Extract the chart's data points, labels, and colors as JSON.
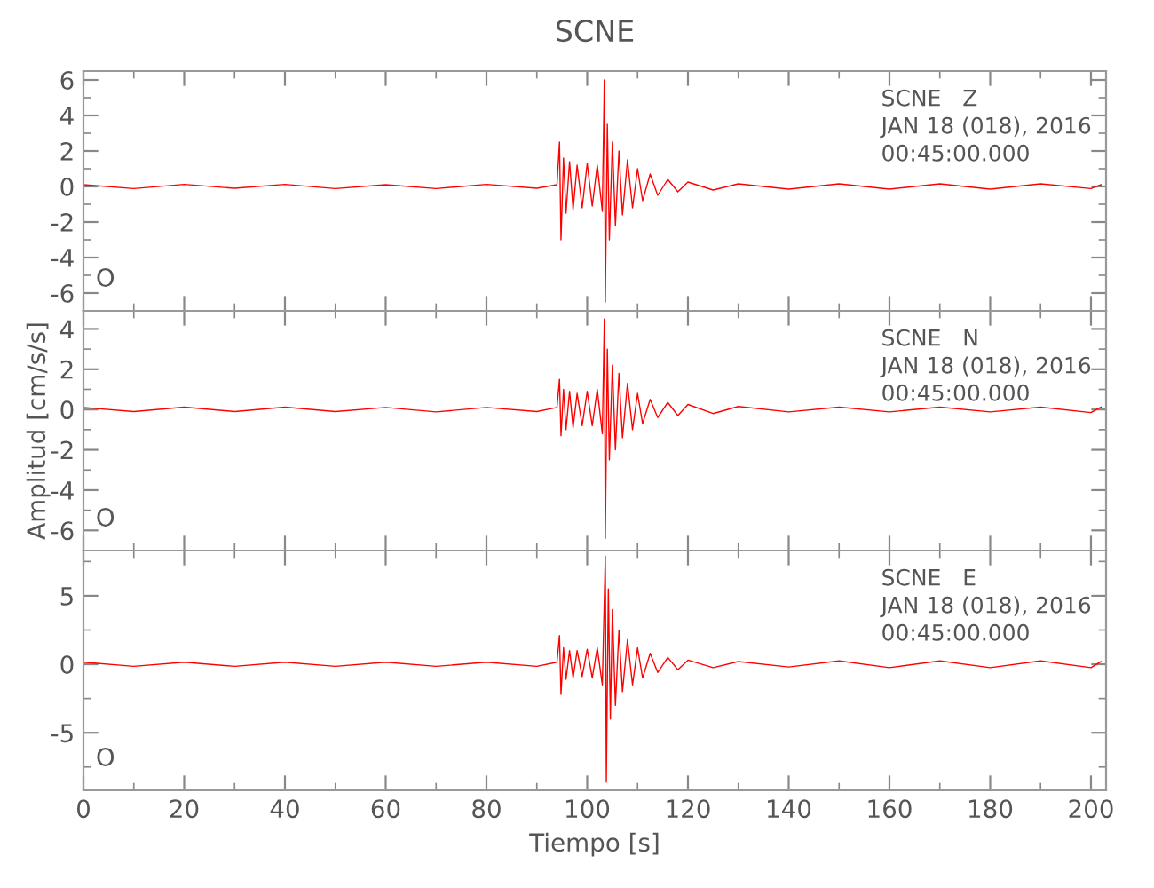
{
  "chart_data": [
    {
      "type": "line",
      "title": "SCNE",
      "tick_labels": "y",
      "xlim": [
        0,
        203
      ],
      "xticks": [
        0,
        20,
        40,
        60,
        80,
        100,
        120,
        140,
        160,
        180,
        200
      ],
      "ylim": [
        -7,
        6.5
      ],
      "yticks": [
        -6,
        -4,
        -2,
        0,
        2,
        4,
        6
      ],
      "grid": false,
      "legend": false,
      "annotations": [
        "SCNE   Z",
        "JAN 18 (018), 2016",
        "00:45:00.000",
        "O"
      ],
      "series": [
        {
          "color": "#ff0000",
          "x": [
            0,
            10,
            20,
            30,
            40,
            50,
            60,
            70,
            80,
            90,
            94,
            94.5,
            94.8,
            95.3,
            95.8,
            96.5,
            97.2,
            98,
            99,
            100,
            101,
            102,
            103,
            103.4,
            103.6,
            104,
            104.4,
            105,
            105.6,
            106.3,
            107,
            108,
            109,
            110,
            111,
            112.5,
            114,
            116,
            118,
            120,
            125,
            130,
            140,
            150,
            160,
            170,
            180,
            190,
            200,
            202
          ],
          "values": [
            0.1,
            -0.12,
            0.12,
            -0.1,
            0.12,
            -0.12,
            0.1,
            -0.12,
            0.12,
            -0.1,
            0.1,
            2.5,
            -3.0,
            1.6,
            -1.5,
            1.4,
            -1.3,
            1.2,
            -1.2,
            1.3,
            -1.1,
            1.2,
            -1.4,
            6.0,
            -6.5,
            3.5,
            -3.0,
            2.5,
            -2.2,
            2.0,
            -1.6,
            1.5,
            -1.2,
            1.0,
            -0.8,
            0.7,
            -0.5,
            0.4,
            -0.3,
            0.25,
            -0.2,
            0.15,
            -0.15,
            0.15,
            -0.15,
            0.15,
            -0.15,
            0.15,
            -0.12,
            0.1
          ]
        }
      ]
    },
    {
      "type": "line",
      "ylabel": "Amplitud [cm/s/s]",
      "tick_labels": "y",
      "xlim": [
        0,
        203
      ],
      "xticks": [
        0,
        20,
        40,
        60,
        80,
        100,
        120,
        140,
        160,
        180,
        200
      ],
      "ylim": [
        -7,
        4.9
      ],
      "yticks": [
        -6,
        -4,
        -2,
        0,
        2,
        4
      ],
      "grid": false,
      "legend": false,
      "annotations": [
        "SCNE   N",
        "JAN 18 (018), 2016",
        "00:45:00.000",
        "O"
      ],
      "series": [
        {
          "color": "#ff0000",
          "x": [
            0,
            10,
            20,
            30,
            40,
            50,
            60,
            70,
            80,
            90,
            94,
            94.5,
            94.8,
            95.3,
            95.8,
            96.5,
            97.2,
            98,
            99,
            100,
            101,
            102,
            103,
            103.4,
            103.6,
            104,
            104.4,
            105,
            105.6,
            106.3,
            107,
            108,
            109,
            110,
            111,
            112.5,
            114,
            116,
            118,
            120,
            125,
            130,
            140,
            150,
            160,
            170,
            180,
            190,
            200,
            202
          ],
          "values": [
            0.1,
            -0.1,
            0.12,
            -0.1,
            0.12,
            -0.1,
            0.1,
            -0.12,
            0.1,
            -0.1,
            0.1,
            1.5,
            -1.3,
            1.0,
            -1.0,
            0.9,
            -0.9,
            0.8,
            -0.8,
            0.9,
            -0.8,
            1.0,
            -1.2,
            4.5,
            -6.4,
            3.0,
            -2.5,
            2.2,
            -2.0,
            1.8,
            -1.4,
            1.3,
            -1.0,
            0.8,
            -0.7,
            0.5,
            -0.4,
            0.35,
            -0.3,
            0.25,
            -0.2,
            0.15,
            -0.12,
            0.12,
            -0.12,
            0.12,
            -0.12,
            0.12,
            -0.15,
            0.12
          ]
        }
      ]
    },
    {
      "type": "line",
      "xlabel": "Tiempo [s]",
      "xlim": [
        0,
        203
      ],
      "xticks": [
        0,
        20,
        40,
        60,
        80,
        100,
        120,
        140,
        160,
        180,
        200
      ],
      "ylim": [
        -9.2,
        8.3
      ],
      "yticks": [
        -5,
        0,
        5
      ],
      "grid": false,
      "legend": false,
      "annotations": [
        "SCNE   E",
        "JAN 18 (018), 2016",
        "00:45:00.000",
        "O"
      ],
      "series": [
        {
          "color": "#ff0000",
          "x": [
            0,
            10,
            20,
            30,
            40,
            50,
            60,
            70,
            80,
            90,
            94,
            94.5,
            94.8,
            95.3,
            95.8,
            96.5,
            97.2,
            98,
            99,
            100,
            101,
            102,
            103,
            103.6,
            103.8,
            104.2,
            104.6,
            105,
            105.6,
            106.3,
            107,
            108,
            109,
            110,
            111,
            112.5,
            114,
            116,
            118,
            120,
            125,
            130,
            140,
            150,
            160,
            170,
            180,
            190,
            200,
            202
          ],
          "values": [
            0.15,
            -0.15,
            0.15,
            -0.15,
            0.15,
            -0.15,
            0.15,
            -0.15,
            0.15,
            -0.15,
            0.15,
            2.1,
            -2.2,
            1.2,
            -1.1,
            1.0,
            -1.0,
            1.0,
            -0.9,
            1.1,
            -1.0,
            1.2,
            -1.5,
            7.9,
            -8.6,
            5.5,
            -4.0,
            4.0,
            -3.0,
            2.5,
            -2.0,
            1.8,
            -1.5,
            1.2,
            -1.0,
            0.8,
            -0.6,
            0.5,
            -0.4,
            0.3,
            -0.25,
            0.2,
            -0.2,
            0.25,
            -0.25,
            0.25,
            -0.25,
            0.25,
            -0.25,
            0.2
          ]
        }
      ]
    }
  ]
}
